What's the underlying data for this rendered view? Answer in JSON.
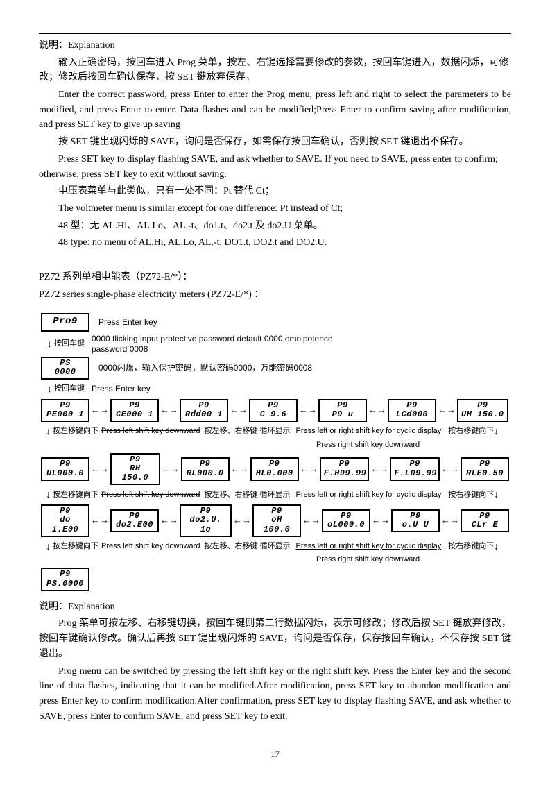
{
  "page_number": "17",
  "top": {
    "heading": "说明：Explanation",
    "p1_cn": "输入正确密码，按回车进入 Prog 菜单，按左、右键选择需要修改的参数，按回车键进入，数据闪烁，可修改；修改后按回车确认保存，按 SET 键放弃保存。",
    "p1_en": "Enter the correct password, press Enter to enter the Prog menu, press left and right to select the parameters to be modified, and press Enter to enter. Data flashes and can be modified;Press Enter to confirm saving after modification, and press SET key to give up saving",
    "p2_cn": "按 SET 键出现闪烁的 SAVE，询问是否保存，如需保存按回车确认，否则按 SET 键退出不保存。",
    "p2_en": "Press SET key to display flashing SAVE, and ask whether to SAVE. If you need to SAVE, press enter to confirm; otherwise, press SET key to exit without saving.",
    "p3_cn": "电压表菜单与此类似，只有一处不同：Pt 替代 Ct；",
    "p3_en": "The voltmeter menu is similar except for one difference: Pt instead of Ct;",
    "p4_cn": "48 型：无 AL.Hi、AL.Lo、AL.-t、do1.t、do2.t 及 do2.U 菜单。",
    "p4_en": "48 type: no menu of AL.Hi, AL.Lo, AL.-t, DO1.t, DO2.t and DO2.U."
  },
  "mid": {
    "title_cn": "PZ72 系列单相电能表（PZ72-E/*）：",
    "title_en": "PZ72 series single-phase electricity meters (PZ72-E/*) ："
  },
  "diagram": {
    "press_enter": "Press Enter key",
    "press_enter_cn": "按回车键",
    "pwd_en": "0000 flicking,input protective password default 0000,omnipotence password 0008",
    "pwd_cn": "0000闪烁，输入保护密码，默认密码0000，万能密码0008",
    "left_down_cn": "按左移键向下",
    "left_down_en": "Press left shift key downward",
    "right_down_cn": "按右移键向下",
    "right_down_en": "Press right shift key downward",
    "lr_cycle_cn": "按左移、右移键 循环显示",
    "lr_cycle_en": "Press left or right shift key for cyclic display",
    "lcd_prog": "Pro9",
    "lcd_ps": {
      "l1": "PS",
      "l2": "0000"
    },
    "row1": [
      {
        "l1": "P9",
        "l2": "PE000 1"
      },
      {
        "l1": "P9",
        "l2": "CE000 1"
      },
      {
        "l1": "P9",
        "l2": "Rdd00 1"
      },
      {
        "l1": "P9",
        "l2": "C    9.6"
      },
      {
        "l1": "P9",
        "l2": "P9    u"
      },
      {
        "l1": "P9",
        "l2": "LCd000"
      },
      {
        "l1": "P9",
        "l2": "UH 150.0"
      }
    ],
    "row2": [
      {
        "l1": "P9",
        "l2": "UL000.0"
      },
      {
        "l1": "P9",
        "l2": "RH 150.0"
      },
      {
        "l1": "P9",
        "l2": "RL000.0"
      },
      {
        "l1": "P9",
        "l2": "HL0.000"
      },
      {
        "l1": "P9",
        "l2": "F.H99.99"
      },
      {
        "l1": "P9",
        "l2": "F.L09.99"
      },
      {
        "l1": "P9",
        "l2": "RLE0.50"
      }
    ],
    "row3": [
      {
        "l1": "P9",
        "l2": "do 1.E00"
      },
      {
        "l1": "P9",
        "l2": "do2.E00"
      },
      {
        "l1": "P9",
        "l2": "do2.U. 1o"
      },
      {
        "l1": "P9",
        "l2": "oH 100.0"
      },
      {
        "l1": "P9",
        "l2": "oL000.0"
      },
      {
        "l1": "P9",
        "l2": "o.U    U"
      },
      {
        "l1": "P9",
        "l2": "CLr   E"
      }
    ],
    "lcd_last": {
      "l1": "P9",
      "l2": "PS.0000"
    }
  },
  "bottom": {
    "heading": "说明：Explanation",
    "p1_cn": "Prog 菜单可按左移、右移键切换，按回车键则第二行数据闪烁，表示可修改；修改后按 SET 键放弃修改，按回车键确认修改。确认后再按 SET 键出现闪烁的 SAVE，询问是否保存，保存按回车确认，不保存按 SET 键退出。",
    "p1_en": "Prog menu can be switched by pressing the left shift key or the right shift key. Press the Enter key and the second line of data flashes, indicating that it can be modified.After modification, press SET key to abandon modification and press Enter key to confirm modification.After confirmation, press SET key to display flashing SAVE, and ask whether to SAVE, press Enter to confirm SAVE, and press SET key to exit."
  },
  "style": {
    "border_color": "#000000",
    "text_color": "#000000",
    "background": "#ffffff"
  }
}
